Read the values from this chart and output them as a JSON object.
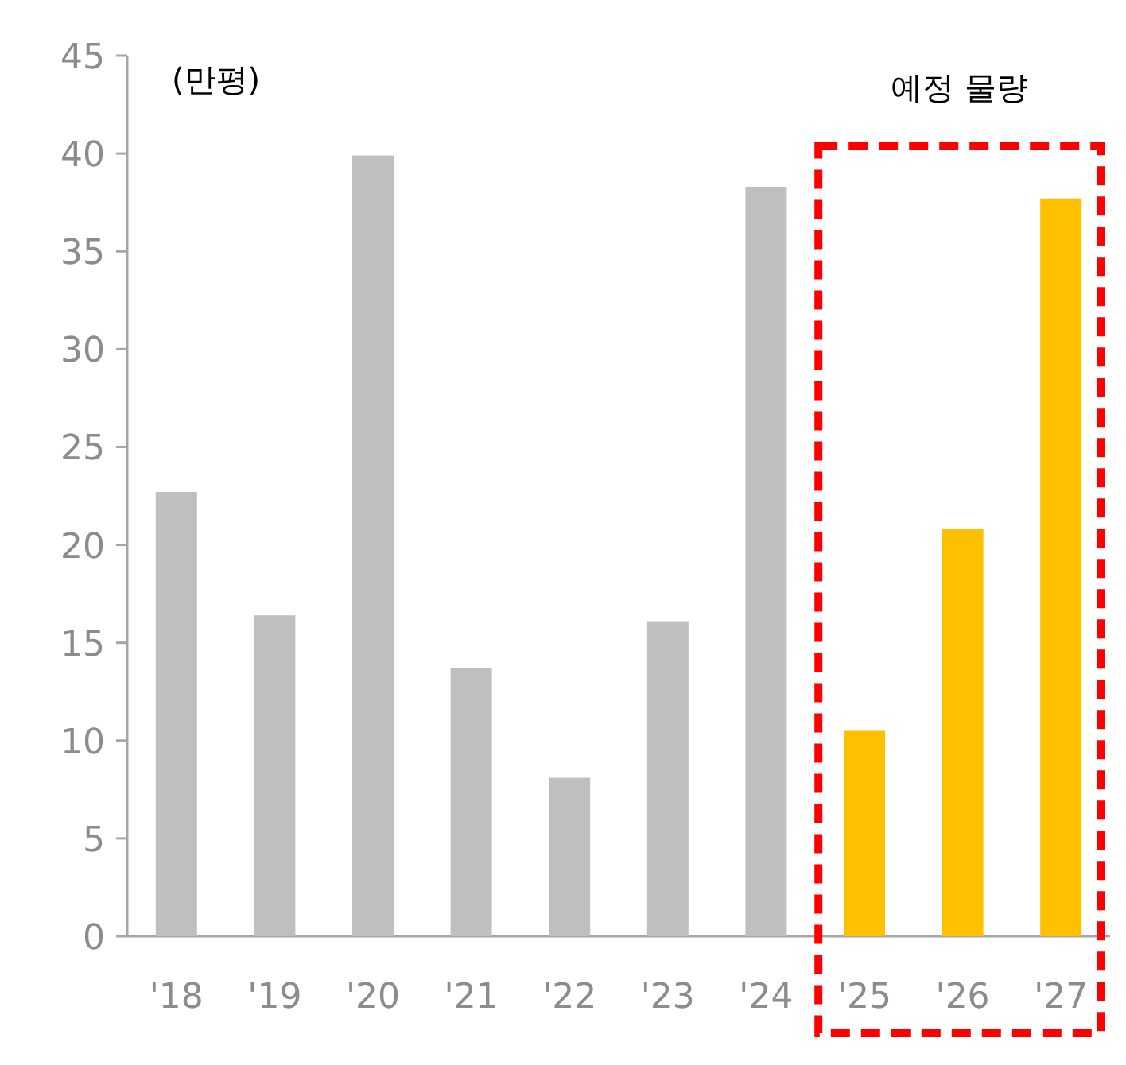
{
  "chart_data": {
    "type": "bar",
    "ylabel": "(만평)",
    "categories": [
      "'18",
      "'19",
      "'20",
      "'21",
      "'22",
      "'23",
      "'24",
      "'25",
      "'26",
      "'27"
    ],
    "values": [
      22.7,
      16.4,
      39.9,
      13.7,
      8.1,
      16.1,
      38.3,
      10.5,
      20.8,
      37.7
    ],
    "colors": [
      "#bfbfbf",
      "#bfbfbf",
      "#bfbfbf",
      "#bfbfbf",
      "#bfbfbf",
      "#bfbfbf",
      "#bfbfbf",
      "#ffc000",
      "#ffc000",
      "#ffc000"
    ],
    "ylim": [
      0,
      45
    ],
    "yticks": [
      0,
      5,
      10,
      15,
      20,
      25,
      30,
      35,
      40,
      45
    ],
    "annotations": [
      "예정 물량"
    ]
  }
}
